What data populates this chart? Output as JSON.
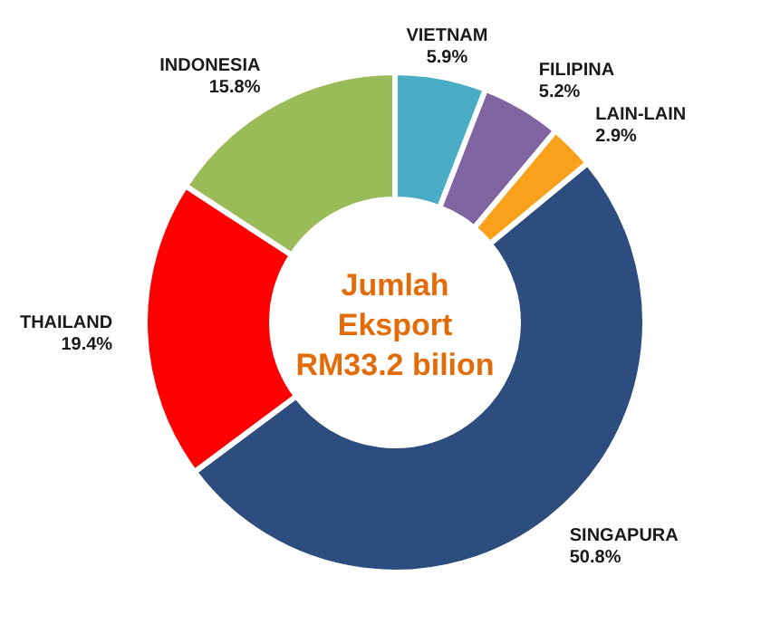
{
  "chart_data": {
    "type": "donut",
    "title": "Jumlah Eksport RM33.2 bilion",
    "categories": [
      "VIETNAM",
      "FILIPINA",
      "LAIN-LAIN",
      "SINGAPURA",
      "THAILAND",
      "INDONESIA"
    ],
    "values": [
      5.9,
      5.2,
      2.9,
      50.8,
      19.4,
      15.8
    ],
    "colors": [
      "#4bacc6",
      "#8064a2",
      "#f9a11b",
      "#2c4d7e",
      "#ff0000",
      "#9bbb59"
    ],
    "value_labels": [
      "5.9%",
      "5.2%",
      "2.9%",
      "50.8%",
      "19.4%",
      "15.8%"
    ]
  }
}
